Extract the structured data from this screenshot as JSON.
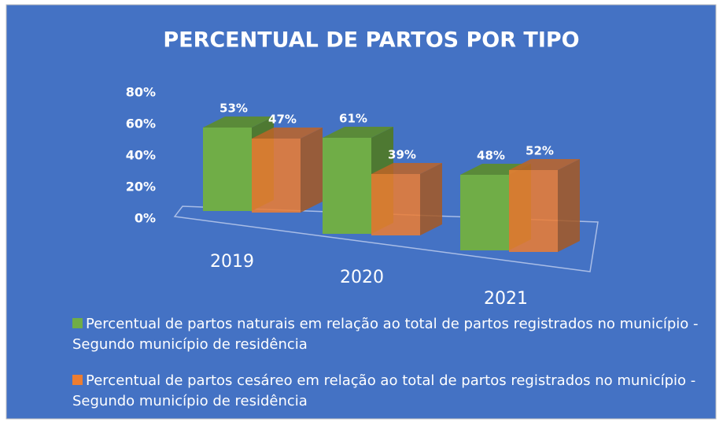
{
  "chart_data": {
    "type": "bar3d",
    "title": "PERCENTUAL DE PARTOS POR TIPO",
    "categories": [
      "2019",
      "2020",
      "2021"
    ],
    "series": [
      {
        "name": "Percentual de partos naturais em relação ao total de partos registrados no município - Segundo município de residência",
        "color": "#70ad47",
        "values": [
          53,
          61,
          48
        ],
        "value_labels": [
          "53%",
          "61%",
          "48%"
        ]
      },
      {
        "name": "Percentual de partos cesáreo em relação ao total de partos registrados no município - Segundo município de residência",
        "color": "#ed7d31",
        "values": [
          47,
          39,
          52
        ],
        "value_labels": [
          "47%",
          "39%",
          "52%"
        ]
      }
    ],
    "ylim": [
      0,
      80
    ],
    "yticks": [
      {
        "value": 0,
        "label": "0%"
      },
      {
        "value": 20,
        "label": "20%"
      },
      {
        "value": 40,
        "label": "40%"
      },
      {
        "value": 60,
        "label": "60%"
      },
      {
        "value": 80,
        "label": "80%"
      }
    ],
    "legend": "bottom"
  }
}
